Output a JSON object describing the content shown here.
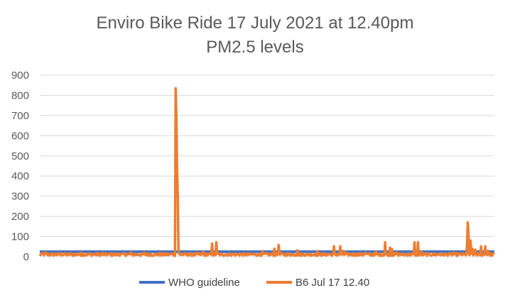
{
  "chart_data": {
    "type": "line",
    "title": [
      "Enviro Bike Ride 17 July 2021 at 12.40pm",
      "PM2.5 levels"
    ],
    "xlabel": "",
    "ylabel": "",
    "ylim": [
      0,
      900
    ],
    "yticks": [
      0,
      100,
      200,
      300,
      400,
      500,
      600,
      700,
      800,
      900
    ],
    "grid": true,
    "legend_position": "bottom",
    "n_points": 650,
    "series": [
      {
        "name": "WHO guideline",
        "color": "#4472C4",
        "constant": 25
      },
      {
        "name": "B6 Jul 17 12.40",
        "color": "#ED7D31",
        "base_min": 5,
        "base_max": 18,
        "spikes": [
          [
            8,
            22
          ],
          [
            30,
            18
          ],
          [
            60,
            20
          ],
          [
            90,
            20
          ],
          [
            130,
            22
          ],
          [
            150,
            20
          ],
          [
            190,
            15
          ],
          [
            194,
            835
          ],
          [
            195,
            700
          ],
          [
            196,
            440
          ],
          [
            197,
            300
          ],
          [
            198,
            40
          ],
          [
            225,
            20
          ],
          [
            233,
            25
          ],
          [
            246,
            65
          ],
          [
            252,
            72
          ],
          [
            253,
            30
          ],
          [
            300,
            15
          ],
          [
            318,
            28
          ],
          [
            335,
            40
          ],
          [
            341,
            58
          ],
          [
            342,
            30
          ],
          [
            368,
            32
          ],
          [
            396,
            28
          ],
          [
            420,
            52
          ],
          [
            429,
            52
          ],
          [
            431,
            30
          ],
          [
            436,
            25
          ],
          [
            465,
            20
          ],
          [
            480,
            25
          ],
          [
            493,
            72
          ],
          [
            500,
            45
          ],
          [
            503,
            38
          ],
          [
            510,
            22
          ],
          [
            535,
            72
          ],
          [
            540,
            72
          ],
          [
            545,
            25
          ],
          [
            590,
            20
          ],
          [
            610,
            60
          ],
          [
            611,
            170
          ],
          [
            612,
            120
          ],
          [
            615,
            80
          ],
          [
            618,
            40
          ],
          [
            622,
            35
          ],
          [
            630,
            52
          ],
          [
            636,
            52
          ],
          [
            640,
            30
          ]
        ]
      }
    ]
  }
}
